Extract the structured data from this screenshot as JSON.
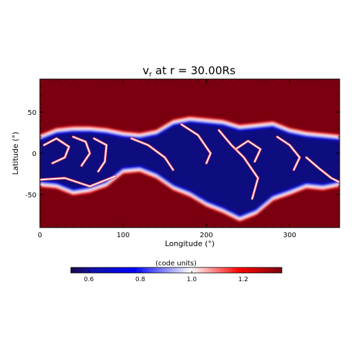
{
  "chart_data": {
    "type": "heatmap",
    "title_main": "v",
    "title_sub": "r",
    "title_rest": " at r = 30.00Rs",
    "xlabel": "Longitude (°)",
    "ylabel": "Latitude (°)",
    "xlim": [
      0,
      360
    ],
    "ylim": [
      -90,
      90
    ],
    "xticks": [
      0,
      100,
      200,
      300
    ],
    "yticks": [
      50,
      0,
      -50
    ],
    "background_value": 1.35,
    "colorbar": {
      "label": "(code units)",
      "range": [
        0.53,
        1.35
      ],
      "ticks": [
        "0.6",
        "0.8",
        "1.0",
        "1.2"
      ],
      "tick_values": [
        0.6,
        0.8,
        1.0,
        1.2
      ],
      "colors": [
        "#1a0a4a",
        "#0000ff",
        "#ffffff",
        "#ff0000",
        "#7a0010"
      ]
    },
    "slow_band": {
      "description_values": "low-speed band boundary (latitude in degrees) vs longitude",
      "lon": [
        0,
        20,
        40,
        60,
        80,
        100,
        120,
        140,
        160,
        180,
        200,
        220,
        240,
        260,
        280,
        300,
        320,
        340,
        360
      ],
      "north": [
        20,
        28,
        30,
        30,
        28,
        24,
        22,
        26,
        38,
        42,
        40,
        38,
        32,
        34,
        36,
        28,
        24,
        22,
        20
      ],
      "south": [
        -38,
        -40,
        -48,
        -45,
        -38,
        -22,
        -20,
        -28,
        -42,
        -50,
        -62,
        -70,
        -80,
        -72,
        -55,
        -48,
        -40,
        -42,
        -38
      ]
    }
  }
}
